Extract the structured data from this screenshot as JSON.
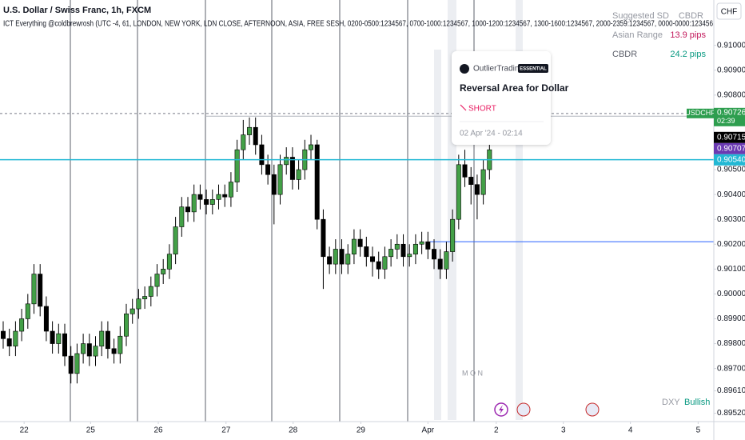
{
  "chart_data": {
    "type": "candlestick",
    "title": "U.S. Dollar / Swiss Franc, 1h, FXCM",
    "subtitle": "ICT Everything @coldbrewrosh (UTC -4, 61, LONDON, NEW YORK, LDN CLOSE, AFTERNOON, ASIA, FREE SESH, 0200-0500:1234567, 0700-1000:1234567, 1000-1200:1234567, 1300-1600:1234567, 2000-2359:1234567, 0000-0000:123456",
    "currency": "CHF",
    "up_color": "#43a047",
    "down_color": "#000000",
    "x": [
      0,
      1,
      2,
      3,
      4,
      5,
      6,
      7,
      8,
      9,
      10,
      11,
      12,
      13,
      14,
      15,
      16,
      17,
      18,
      19,
      20,
      21,
      22,
      23,
      24,
      25,
      26,
      27,
      28,
      29,
      30,
      31,
      32,
      33,
      34,
      35,
      36,
      37,
      38,
      39,
      40,
      41,
      42,
      43,
      44,
      45,
      46,
      47,
      48,
      49,
      50,
      51,
      52,
      53,
      54,
      55,
      56,
      57,
      58,
      59,
      60,
      61,
      62,
      63,
      64,
      65,
      66,
      67,
      68,
      69,
      70,
      71,
      72,
      73,
      74,
      75,
      76,
      77,
      78,
      79
    ],
    "open": [
      0.8985,
      0.8982,
      0.8979,
      0.8985,
      0.899,
      0.8996,
      0.9008,
      0.8995,
      0.8985,
      0.898,
      0.8984,
      0.8975,
      0.8968,
      0.8976,
      0.898,
      0.8975,
      0.8979,
      0.8985,
      0.8978,
      0.8976,
      0.8983,
      0.8992,
      0.8994,
      0.8998,
      0.8999,
      0.9003,
      0.9008,
      0.901,
      0.9016,
      0.9027,
      0.9035,
      0.9033,
      0.904,
      0.9038,
      0.9036,
      0.9038,
      0.904,
      0.9039,
      0.9045,
      0.9058,
      0.9064,
      0.9067,
      0.906,
      0.9052,
      0.9048,
      0.904,
      0.9052,
      0.9055,
      0.9046,
      0.905,
      0.9058,
      0.906,
      0.903,
      0.9015,
      0.9012,
      0.9018,
      0.9012,
      0.9016,
      0.9022,
      0.9019,
      0.9015,
      0.9013,
      0.901,
      0.9015,
      0.9018,
      0.902,
      0.9015,
      0.9016,
      0.902,
      0.9021,
      0.9018,
      0.9014,
      0.901,
      0.9017,
      0.903,
      0.9052,
      0.9047,
      0.9044,
      0.904,
      0.905
    ],
    "high": [
      0.8989,
      0.8986,
      0.8989,
      0.8994,
      0.9,
      0.9012,
      0.9012,
      0.8999,
      0.8989,
      0.8988,
      0.8988,
      0.8979,
      0.898,
      0.8984,
      0.8984,
      0.8983,
      0.8989,
      0.8989,
      0.8982,
      0.8987,
      0.8996,
      0.8998,
      0.9002,
      0.9003,
      0.9007,
      0.9012,
      0.9014,
      0.902,
      0.9031,
      0.9039,
      0.9039,
      0.9044,
      0.9044,
      0.9042,
      0.9042,
      0.9044,
      0.9044,
      0.9049,
      0.9062,
      0.907,
      0.9071,
      0.9071,
      0.9064,
      0.9056,
      0.9052,
      0.9056,
      0.9059,
      0.9059,
      0.9054,
      0.9062,
      0.9064,
      0.9062,
      0.9034,
      0.9019,
      0.9022,
      0.9022,
      0.902,
      0.9026,
      0.9026,
      0.9023,
      0.9019,
      0.9017,
      0.9019,
      0.9022,
      0.9024,
      0.9024,
      0.902,
      0.9024,
      0.9025,
      0.9025,
      0.9022,
      0.9018,
      0.9021,
      0.9034,
      0.9056,
      0.9058,
      0.9051,
      0.9048,
      0.9054,
      0.9062
    ],
    "low": [
      0.8978,
      0.8975,
      0.8975,
      0.8981,
      0.8986,
      0.8992,
      0.8991,
      0.8981,
      0.8976,
      0.8976,
      0.8971,
      0.8964,
      0.8964,
      0.8972,
      0.8971,
      0.8971,
      0.8975,
      0.8974,
      0.8972,
      0.8972,
      0.8979,
      0.8988,
      0.899,
      0.8994,
      0.8995,
      0.8999,
      0.9004,
      0.9006,
      0.9012,
      0.9023,
      0.9029,
      0.9029,
      0.9034,
      0.9032,
      0.9032,
      0.9034,
      0.9035,
      0.9035,
      0.9041,
      0.9054,
      0.906,
      0.9056,
      0.9048,
      0.9044,
      0.9028,
      0.9036,
      0.9048,
      0.9042,
      0.9042,
      0.9046,
      0.9054,
      0.9026,
      0.9002,
      0.9008,
      0.9008,
      0.9008,
      0.9008,
      0.9012,
      0.9015,
      0.9011,
      0.9007,
      0.9006,
      0.9006,
      0.9011,
      0.9014,
      0.9011,
      0.9011,
      0.9012,
      0.9016,
      0.9014,
      0.901,
      0.9006,
      0.9006,
      0.9013,
      0.9026,
      0.9043,
      0.9036,
      0.903,
      0.9036,
      0.9046
    ],
    "close": [
      0.8982,
      0.8979,
      0.8985,
      0.899,
      0.8996,
      0.9008,
      0.8995,
      0.8985,
      0.898,
      0.8984,
      0.8975,
      0.8968,
      0.8976,
      0.898,
      0.8975,
      0.8979,
      0.8985,
      0.8978,
      0.8976,
      0.8983,
      0.8992,
      0.8994,
      0.8998,
      0.8999,
      0.9003,
      0.9008,
      0.901,
      0.9016,
      0.9027,
      0.9035,
      0.9033,
      0.904,
      0.9038,
      0.9036,
      0.9038,
      0.904,
      0.9039,
      0.9045,
      0.9058,
      0.9064,
      0.9067,
      0.906,
      0.9052,
      0.9048,
      0.904,
      0.9052,
      0.9055,
      0.9046,
      0.905,
      0.9058,
      0.906,
      0.903,
      0.9015,
      0.9012,
      0.9018,
      0.9012,
      0.9016,
      0.9022,
      0.9019,
      0.9015,
      0.9013,
      0.901,
      0.9015,
      0.9018,
      0.902,
      0.9015,
      0.9016,
      0.902,
      0.9021,
      0.9018,
      0.9014,
      0.901,
      0.9017,
      0.903,
      0.9052,
      0.9047,
      0.9044,
      0.904,
      0.905,
      0.9058
    ],
    "xlim": [
      -0.52,
      115.45
    ],
    "xticks": [
      {
        "value": 3.4,
        "label": "22"
      },
      {
        "value": 14.2,
        "label": "25"
      },
      {
        "value": 25.2,
        "label": "26"
      },
      {
        "value": 36.2,
        "label": "27"
      },
      {
        "value": 47.1,
        "label": "28"
      },
      {
        "value": 58.1,
        "label": "29"
      },
      {
        "value": 69.0,
        "label": "Apr"
      },
      {
        "value": 80.1,
        "label": "2"
      },
      {
        "value": 91.0,
        "label": "3"
      },
      {
        "value": 101.9,
        "label": "4"
      },
      {
        "value": 112.9,
        "label": "5"
      }
    ],
    "ylim": [
      0.894864,
      0.911824
    ],
    "yticks": [
      {
        "value": 0.91,
        "label": "0.91000"
      },
      {
        "value": 0.909,
        "label": "0.90900"
      },
      {
        "value": 0.908,
        "label": "0.90800"
      },
      {
        "value": 0.905,
        "label": "0.90500"
      },
      {
        "value": 0.904,
        "label": "0.90400"
      },
      {
        "value": 0.903,
        "label": "0.90300"
      },
      {
        "value": 0.902,
        "label": "0.90200"
      },
      {
        "value": 0.901,
        "label": "0.90100"
      },
      {
        "value": 0.9,
        "label": "0.90000"
      },
      {
        "value": 0.899,
        "label": "0.89900"
      },
      {
        "value": 0.898,
        "label": "0.89800"
      },
      {
        "value": 0.897,
        "label": "0.89700"
      },
      {
        "value": 0.8961,
        "label": "0.89610"
      },
      {
        "value": 0.8952,
        "label": "0.89520"
      }
    ],
    "symbol_badge": {
      "name": "USDCHF",
      "color": "#2e9e4f",
      "price": {
        "value": 0.90726,
        "label": "0.90726"
      },
      "countdown": "02:39"
    },
    "price_labels": [
      {
        "value": 0.90715,
        "label": "0.90715",
        "color": "#000000"
      },
      {
        "value": 0.90707,
        "label": "0.90707",
        "color": "#6a3ab2"
      },
      {
        "value": 0.9054,
        "label": "0.90540",
        "color": "#22b8d4"
      }
    ],
    "levels": [
      {
        "value": 0.9021,
        "color": "#2962ff"
      }
    ],
    "grid": false
  },
  "info_table": {
    "rows": [
      [
        "Suggested SD",
        "CBDR"
      ],
      [
        "Asian Range",
        "13.9 pips"
      ],
      [
        "CBDR",
        "24.2 pips"
      ]
    ]
  },
  "idea_card": {
    "author": "OutlierTrading",
    "badge": "ESSENTIAL",
    "title": "Reversal Area for Dollar",
    "direction": "SHORT",
    "date": "02 Apr '24 - 02:14"
  },
  "session_label": "M O N",
  "dxy": {
    "name": "DXY",
    "status": "Bullish"
  }
}
